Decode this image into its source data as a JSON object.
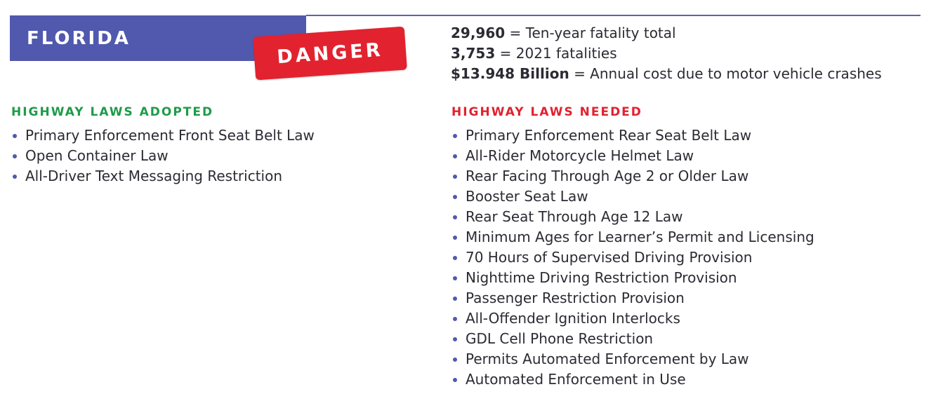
{
  "banner": {
    "state": "FLORIDA",
    "badge": "DANGER"
  },
  "colors": {
    "banner_blue": "#5059ad",
    "danger_red": "#e2222f",
    "adopted_green": "#1e9b4a",
    "bullet_blue": "#5059ad"
  },
  "stats": [
    {
      "value": "29,960",
      "label": "= Ten-year fatality total"
    },
    {
      "value": "3,753",
      "label": "= 2021 fatalities"
    },
    {
      "value": "$13.948 Billion",
      "label": "= Annual cost due to motor vehicle crashes"
    }
  ],
  "adopted": {
    "heading": "HIGHWAY LAWS ADOPTED",
    "items": [
      "Primary Enforcement Front Seat Belt Law",
      "Open Container Law",
      "All-Driver Text Messaging Restriction"
    ]
  },
  "needed": {
    "heading": "HIGHWAY LAWS NEEDED",
    "items": [
      "Primary Enforcement Rear Seat Belt Law",
      "All-Rider Motorcycle Helmet Law",
      "Rear Facing Through Age 2 or Older Law",
      "Booster Seat Law",
      "Rear Seat Through Age 12 Law",
      "Minimum Ages for Learner’s Permit and Licensing",
      "70 Hours of Supervised Driving Provision",
      "Nighttime Driving Restriction Provision",
      "Passenger Restriction Provision",
      "All-Offender Ignition Interlocks",
      "GDL Cell Phone Restriction",
      "Permits Automated Enforcement by Law",
      "Automated Enforcement in Use"
    ]
  }
}
